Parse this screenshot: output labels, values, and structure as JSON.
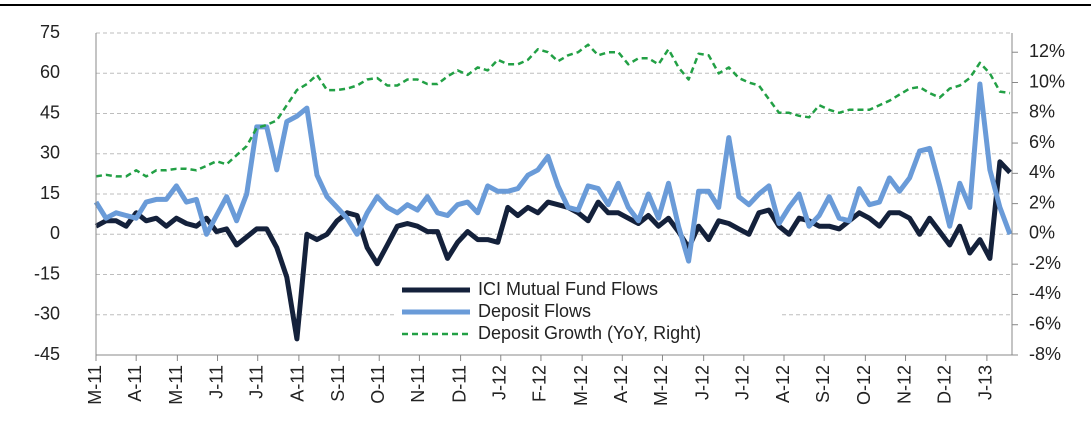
{
  "chart_data": {
    "type": "line",
    "x": [
      0,
      1,
      2,
      3,
      4,
      5,
      6,
      7,
      8,
      9,
      10,
      11,
      12,
      13,
      14,
      15,
      16,
      17,
      18,
      19,
      20,
      21,
      22,
      23,
      24,
      25,
      26,
      27,
      28,
      29,
      30,
      31,
      32,
      33,
      34,
      35,
      36,
      37,
      38,
      39,
      40,
      41,
      42,
      43,
      44,
      45,
      46,
      47,
      48,
      49,
      50,
      51,
      52,
      53,
      54,
      55,
      56,
      57,
      58,
      59,
      60,
      61,
      62,
      63,
      64,
      65,
      66,
      67,
      68,
      69,
      70,
      71,
      72,
      73,
      74,
      75,
      76,
      77,
      78,
      79,
      80,
      81,
      82,
      83,
      84,
      85,
      86,
      87,
      88,
      89,
      90,
      91
    ],
    "xlim": [
      0,
      91.2
    ],
    "xticks": [
      {
        "value": 0,
        "label": "M-11"
      },
      {
        "value": 4,
        "label": "A-11"
      },
      {
        "value": 8.1,
        "label": "M-11"
      },
      {
        "value": 12.1,
        "label": "J-11"
      },
      {
        "value": 16.1,
        "label": "J-11"
      },
      {
        "value": 20.2,
        "label": "A-11"
      },
      {
        "value": 24.2,
        "label": "S-11"
      },
      {
        "value": 28.2,
        "label": "O-11"
      },
      {
        "value": 32.2,
        "label": "N-11"
      },
      {
        "value": 36.3,
        "label": "D-11"
      },
      {
        "value": 40.3,
        "label": "J-12"
      },
      {
        "value": 44.3,
        "label": "F-12"
      },
      {
        "value": 48.4,
        "label": "M-12"
      },
      {
        "value": 52.4,
        "label": "A-12"
      },
      {
        "value": 56.4,
        "label": "M-12"
      },
      {
        "value": 60.5,
        "label": "J-12"
      },
      {
        "value": 64.5,
        "label": "J-12"
      },
      {
        "value": 68.5,
        "label": "A-12"
      },
      {
        "value": 72.5,
        "label": "S-12"
      },
      {
        "value": 76.6,
        "label": "O-12"
      },
      {
        "value": 80.6,
        "label": "N-12"
      },
      {
        "value": 84.6,
        "label": "D-12"
      },
      {
        "value": 88.7,
        "label": "J-13"
      }
    ],
    "ylim": [
      -45,
      75
    ],
    "yticks": [
      -45,
      -30,
      -15,
      0,
      15,
      30,
      45,
      60,
      75
    ],
    "y2lim": [
      -8,
      13.27
    ],
    "y2ticks": [
      {
        "value": -8,
        "label": "-8%"
      },
      {
        "value": -6,
        "label": "-6%"
      },
      {
        "value": -4,
        "label": "-4%"
      },
      {
        "value": -2,
        "label": "-2%"
      },
      {
        "value": 0,
        "label": "0%"
      },
      {
        "value": 2,
        "label": "2%"
      },
      {
        "value": 4,
        "label": "4%"
      },
      {
        "value": 6,
        "label": "6%"
      },
      {
        "value": 8,
        "label": "8%"
      },
      {
        "value": 10,
        "label": "10%"
      },
      {
        "value": 12,
        "label": "12%"
      }
    ],
    "grid": true,
    "series": [
      {
        "name": "ICI Mutual Fund Flows",
        "color": "#14213b",
        "style": "solid",
        "values": [
          3,
          5,
          5,
          3,
          8,
          5,
          6,
          3,
          6,
          4,
          3,
          6,
          1,
          2,
          -4,
          -1,
          2,
          2,
          -5,
          -16,
          -39,
          0,
          -2,
          0,
          5,
          8,
          7,
          -5,
          -11,
          -4,
          3,
          4,
          3,
          1,
          1,
          -9,
          -3,
          1,
          -2,
          -2,
          -3,
          10,
          7,
          10,
          8,
          12,
          11,
          10,
          8,
          5,
          12,
          8,
          8,
          6,
          4,
          7,
          3,
          6,
          1,
          -5,
          3,
          -2,
          5,
          4,
          2,
          0,
          8,
          9,
          3,
          0,
          6,
          5,
          3,
          3,
          2,
          5,
          8,
          6,
          3,
          8,
          8,
          6,
          0,
          6,
          1,
          -4,
          3,
          -7,
          -2,
          -9,
          27,
          23
        ]
      },
      {
        "name": "Deposit Flows",
        "color": "#6a9bd8",
        "style": "solid",
        "values": [
          12,
          6,
          8,
          7,
          6,
          12,
          13,
          13,
          18,
          12,
          13,
          0,
          7,
          14,
          5,
          15,
          40,
          40,
          24,
          42,
          44,
          47,
          22,
          14,
          10,
          6,
          0,
          8,
          14,
          10,
          8,
          11,
          9,
          14,
          8,
          7,
          11,
          12,
          8,
          18,
          16,
          16,
          17,
          22,
          24,
          29,
          18,
          10,
          9,
          18,
          17,
          11,
          19,
          10,
          5,
          15,
          6,
          19,
          3,
          -10,
          16,
          16,
          10,
          36,
          14,
          11,
          15,
          18,
          4,
          10,
          15,
          3,
          7,
          14,
          6,
          5,
          17,
          11,
          12,
          21,
          16,
          21,
          31,
          32,
          18,
          3,
          19,
          10,
          56,
          24,
          10,
          0
        ]
      },
      {
        "name": "Deposit Growth (YoY, Right)",
        "color": "#22a045",
        "style": "dashed",
        "axis": "y2",
        "values": [
          3.8,
          3.9,
          3.8,
          3.8,
          4.2,
          3.8,
          4.2,
          4.2,
          4.3,
          4.3,
          4.2,
          4.5,
          4.8,
          4.6,
          5.2,
          5.8,
          7.0,
          7.2,
          7.5,
          8.5,
          9.5,
          9.9,
          10.5,
          9.5,
          9.5,
          9.6,
          9.8,
          10.2,
          10.3,
          9.8,
          9.8,
          10.2,
          10.2,
          9.9,
          9.9,
          10.4,
          10.8,
          10.5,
          11.0,
          10.8,
          11.5,
          11.2,
          11.2,
          11.5,
          12.2,
          12.0,
          11.4,
          11.8,
          12.0,
          12.5,
          11.8,
          12.0,
          12.0,
          11.2,
          11.6,
          11.6,
          11.2,
          12.2,
          11.0,
          10.2,
          11.9,
          11.8,
          10.6,
          11.0,
          10.3,
          10.0,
          9.8,
          8.9,
          8.0,
          8.0,
          7.8,
          7.7,
          8.5,
          8.2,
          8.0,
          8.2,
          8.2,
          8.2,
          8.5,
          8.8,
          9.2,
          9.6,
          9.7,
          9.3,
          9.0,
          9.6,
          9.8,
          10.3,
          11.3,
          10.6,
          9.4,
          9.3
        ]
      }
    ]
  }
}
